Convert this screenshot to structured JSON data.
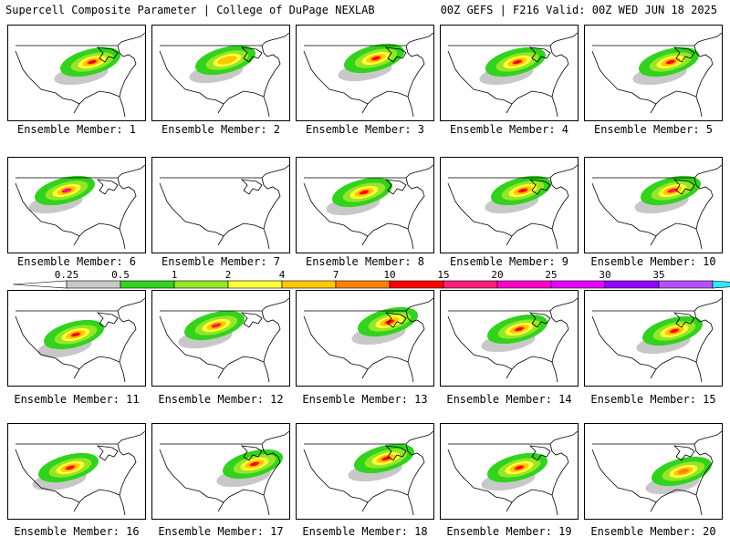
{
  "header": {
    "title": "Supercell Composite Parameter | College of DuPage NEXLAB",
    "run_info": "00Z GEFS | F216 Valid: 00Z WED JUN 18 2025"
  },
  "members": [
    "Ensemble Member: 1",
    "Ensemble Member: 2",
    "Ensemble Member: 3",
    "Ensemble Member: 4",
    "Ensemble Member: 5",
    "Ensemble Member: 6",
    "Ensemble Member: 7",
    "Ensemble Member: 8",
    "Ensemble Member: 9",
    "Ensemble Member: 10",
    "Ensemble Member: 11",
    "Ensemble Member: 12",
    "Ensemble Member: 13",
    "Ensemble Member: 14",
    "Ensemble Member: 15",
    "Ensemble Member: 16",
    "Ensemble Member: 17",
    "Ensemble Member: 18",
    "Ensemble Member: 19",
    "Ensemble Member: 20"
  ],
  "colorbar": {
    "ticks": [
      "0.25",
      "0.5",
      "1",
      "2",
      "4",
      "7",
      "10",
      "15",
      "20",
      "25",
      "30",
      "35"
    ],
    "colors": [
      "#c8c8c8",
      "#32d21e",
      "#96e628",
      "#ffff3c",
      "#ffc800",
      "#ff8200",
      "#ff0000",
      "#ff1e78",
      "#ff00c8",
      "#e600ff",
      "#9600ff",
      "#b450ff",
      "#32e6ff"
    ]
  },
  "chart_data": {
    "type": "heatmap",
    "title": "Supercell Composite Parameter | College of DuPage NEXLAB",
    "variable": "Supercell Composite Parameter",
    "model": "GEFS",
    "run": "00Z",
    "forecast_hour": "F216",
    "valid": "00Z WED JUN 18 2025",
    "levels": [
      0.25,
      0.5,
      1,
      2,
      4,
      7,
      10,
      15,
      20,
      25,
      30,
      35
    ],
    "members": [
      {
        "name": "Ensemble Member: 1",
        "max_category": "10",
        "region": "Northern Plains to Great Lakes"
      },
      {
        "name": "Ensemble Member: 2",
        "max_category": "4",
        "region": "Upper Midwest"
      },
      {
        "name": "Ensemble Member: 3",
        "max_category": "10",
        "region": "Northern Plains to Great Lakes"
      },
      {
        "name": "Ensemble Member: 4",
        "max_category": "10",
        "region": "Northern Plains to Midwest"
      },
      {
        "name": "Ensemble Member: 5",
        "max_category": "10",
        "region": "Upper Midwest to Northeast"
      },
      {
        "name": "Ensemble Member: 6",
        "max_category": "20",
        "region": "Northern Plains"
      },
      {
        "name": "Ensemble Member: 7",
        "max_category": "none",
        "region": "none"
      },
      {
        "name": "Ensemble Member: 8",
        "max_category": "10",
        "region": "Northern Plains to Great Lakes"
      },
      {
        "name": "Ensemble Member: 9",
        "max_category": "10",
        "region": "Upper Midwest to Great Lakes"
      },
      {
        "name": "Ensemble Member: 10",
        "max_category": "15",
        "region": "Upper Midwest to Northeast"
      },
      {
        "name": "Ensemble Member: 11",
        "max_category": "10",
        "region": "Central Plains to Midwest"
      },
      {
        "name": "Ensemble Member: 12",
        "max_category": "15",
        "region": "Northern Plains"
      },
      {
        "name": "Ensemble Member: 13",
        "max_category": "10",
        "region": "Great Lakes"
      },
      {
        "name": "Ensemble Member: 14",
        "max_category": "10",
        "region": "Midwest"
      },
      {
        "name": "Ensemble Member: 15",
        "max_category": "10",
        "region": "Upper Midwest to Ohio Valley"
      },
      {
        "name": "Ensemble Member: 16",
        "max_category": "10",
        "region": "Central Plains"
      },
      {
        "name": "Ensemble Member: 17",
        "max_category": "10",
        "region": "Ohio Valley to Mid-Atlantic"
      },
      {
        "name": "Ensemble Member: 18",
        "max_category": "10",
        "region": "Upper Midwest"
      },
      {
        "name": "Ensemble Member: 19",
        "max_category": "10",
        "region": "Central Plains to Midwest"
      },
      {
        "name": "Ensemble Member: 20",
        "max_category": "7",
        "region": "Ohio Valley to Northeast"
      }
    ]
  }
}
